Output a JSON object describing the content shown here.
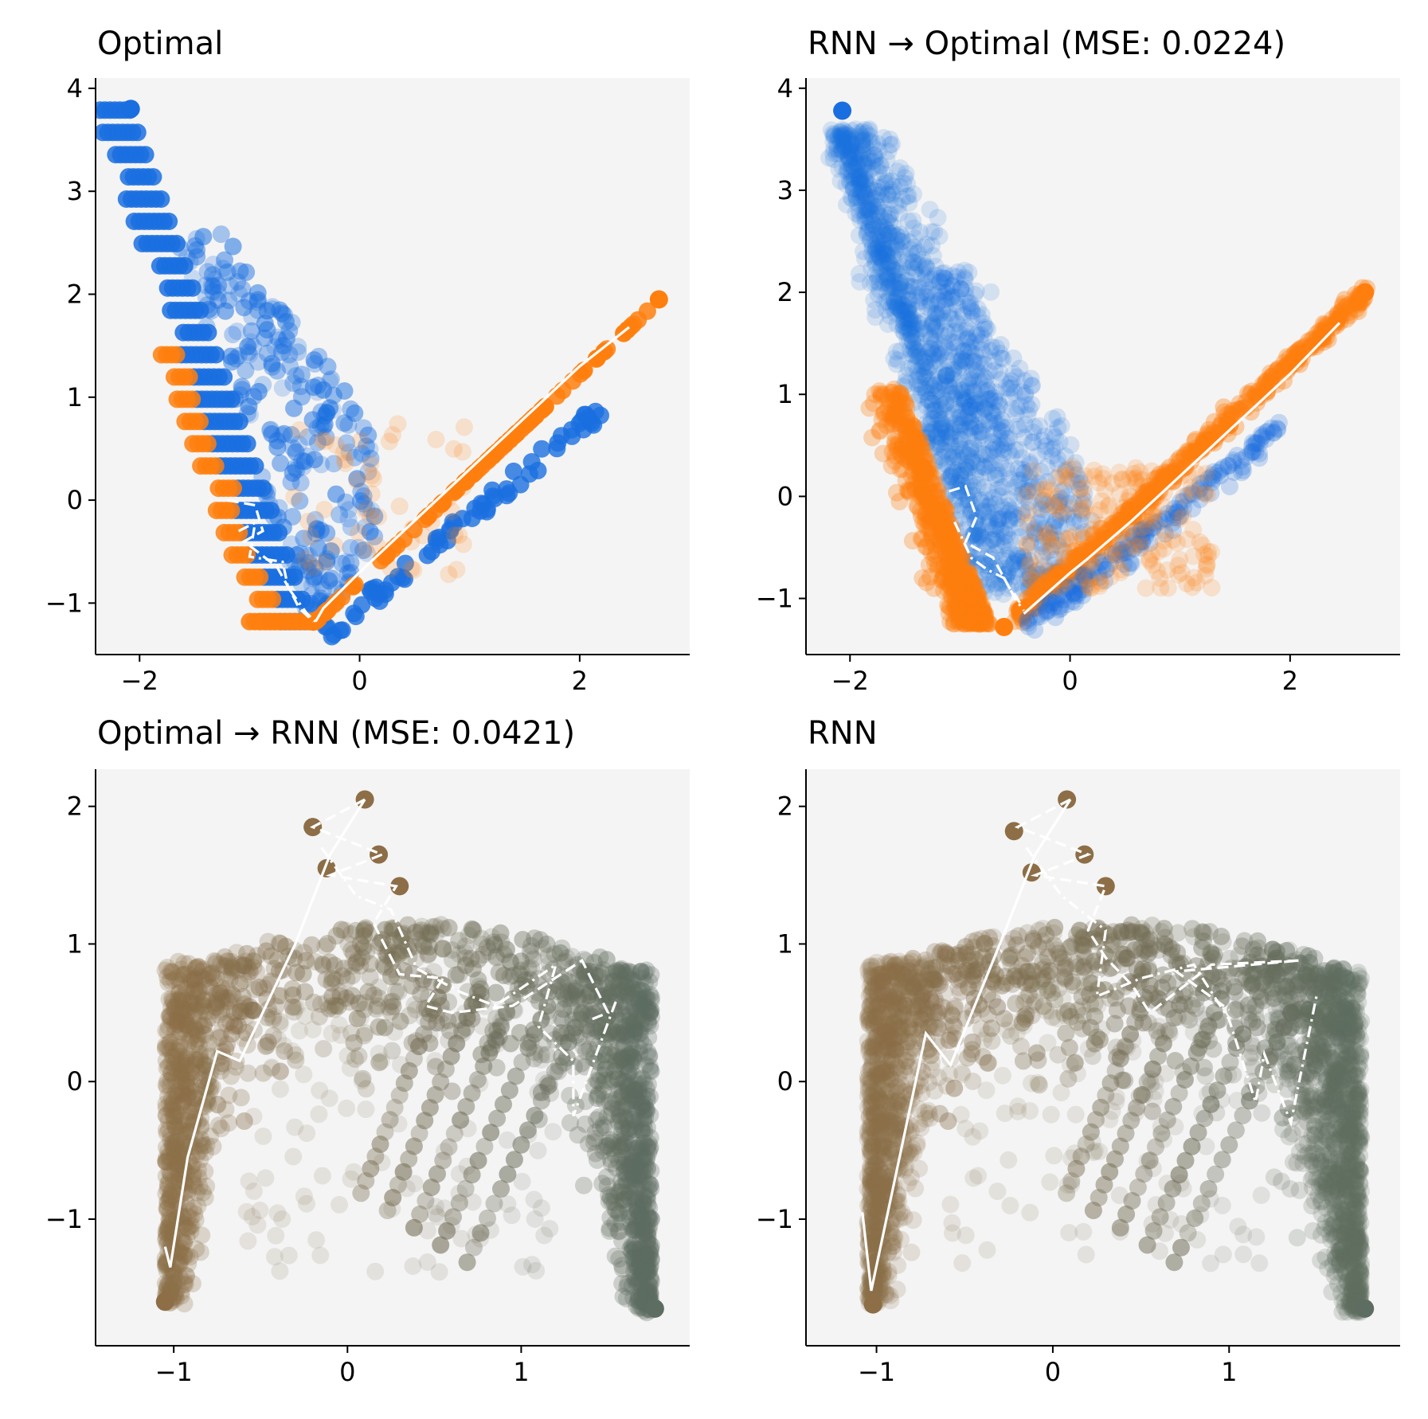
{
  "figure": {
    "background": "#ffffff",
    "panel_background": "#f4f4f4"
  },
  "chart_data": [
    {
      "type": "scatter",
      "title": "Optimal",
      "xlabel": "",
      "ylabel": "",
      "xlim": [
        -2.4,
        3.0
      ],
      "ylim": [
        -1.5,
        4.1
      ],
      "xticks": [
        -2,
        0,
        2
      ],
      "xtick_labels": [
        "−2",
        "0",
        "2"
      ],
      "yticks": [
        -1,
        0,
        1,
        2,
        3,
        4
      ],
      "ytick_labels": [
        "−1",
        "0",
        "1",
        "2",
        "3",
        "4"
      ],
      "grid": false,
      "series": [
        {
          "name": "blue",
          "color": "#1a6fe0"
        },
        {
          "name": "orange",
          "color": "#ff7f0e"
        }
      ],
      "generated_style": "optimal",
      "key_points": [
        {
          "x": -2.08,
          "y": 3.8,
          "color": "#1a6fe0"
        },
        {
          "x": 2.72,
          "y": 1.95,
          "color": "#ff7f0e"
        },
        {
          "x": -0.42,
          "y": -1.18,
          "color": "#ff7f0e"
        }
      ],
      "trajectories": [
        {
          "style": "solid",
          "points": [
            [
              -0.4,
              -1.18
            ],
            [
              -0.33,
              -1.05
            ],
            [
              0.0,
              -0.7
            ],
            [
              0.5,
              -0.2
            ],
            [
              1.0,
              0.3
            ],
            [
              1.5,
              0.8
            ],
            [
              2.0,
              1.3
            ],
            [
              2.45,
              1.68
            ]
          ]
        },
        {
          "style": "dashed",
          "points": [
            [
              -1.2,
              0.0
            ],
            [
              -0.95,
              -0.05
            ],
            [
              -0.88,
              -0.3
            ],
            [
              -1.05,
              -0.4
            ],
            [
              -0.75,
              -0.65
            ],
            [
              -0.62,
              -0.9
            ],
            [
              -0.55,
              -1.05
            ],
            [
              -0.42,
              -1.18
            ]
          ]
        },
        {
          "style": "dashdot",
          "points": [
            [
              -1.1,
              -0.3
            ],
            [
              -0.95,
              -0.22
            ],
            [
              -1.0,
              -0.55
            ],
            [
              -0.7,
              -0.6
            ],
            [
              -0.65,
              -0.85
            ],
            [
              -0.48,
              -1.1
            ],
            [
              -0.4,
              -1.18
            ]
          ]
        }
      ]
    },
    {
      "type": "scatter",
      "title": "RNN → Optimal (MSE: 0.0224)",
      "xlabel": "",
      "ylabel": "",
      "xlim": [
        -2.4,
        3.0
      ],
      "ylim": [
        -1.55,
        4.1
      ],
      "xticks": [
        -2,
        0,
        2
      ],
      "xtick_labels": [
        "−2",
        "0",
        "2"
      ],
      "yticks": [
        -1,
        0,
        1,
        2,
        3,
        4
      ],
      "ytick_labels": [
        "−1",
        "0",
        "1",
        "2",
        "3",
        "4"
      ],
      "grid": false,
      "series": [
        {
          "name": "blue",
          "color": "#1a6fe0"
        },
        {
          "name": "orange",
          "color": "#ff7f0e"
        }
      ],
      "generated_style": "rnn_optimal",
      "key_points": [
        {
          "x": -2.07,
          "y": 3.78,
          "color": "#1a6fe0"
        },
        {
          "x": 2.68,
          "y": 2.0,
          "color": "#ff7f0e"
        },
        {
          "x": -0.6,
          "y": -1.28,
          "color": "#ff7f0e"
        }
      ],
      "trajectories": [
        {
          "style": "solid",
          "points": [
            [
              -0.42,
              -1.15
            ],
            [
              0.0,
              -0.75
            ],
            [
              0.15,
              -0.62
            ],
            [
              0.55,
              -0.25
            ],
            [
              1.0,
              0.2
            ],
            [
              1.5,
              0.7
            ],
            [
              2.0,
              1.2
            ],
            [
              2.45,
              1.7
            ]
          ]
        },
        {
          "style": "dashed",
          "points": [
            [
              -1.1,
              0.05
            ],
            [
              -0.95,
              0.1
            ],
            [
              -0.85,
              -0.2
            ],
            [
              -0.95,
              -0.45
            ],
            [
              -0.7,
              -0.6
            ],
            [
              -0.55,
              -0.9
            ],
            [
              -0.45,
              -1.05
            ]
          ]
        },
        {
          "style": "dashdot",
          "points": [
            [
              -1.05,
              -0.25
            ],
            [
              -0.9,
              -0.6
            ],
            [
              -0.75,
              -0.72
            ],
            [
              -0.6,
              -0.8
            ],
            [
              -0.5,
              -1.0
            ],
            [
              -0.42,
              -1.12
            ]
          ]
        }
      ]
    },
    {
      "type": "scatter",
      "title": "Optimal → RNN (MSE: 0.0421)",
      "xlabel": "",
      "ylabel": "",
      "xlim": [
        -1.45,
        1.97
      ],
      "ylim": [
        -1.92,
        2.27
      ],
      "xticks": [
        -1,
        0,
        1
      ],
      "xtick_labels": [
        "−1",
        "0",
        "1"
      ],
      "yticks": [
        -1,
        0,
        1,
        2
      ],
      "ytick_labels": [
        "−1",
        "0",
        "1",
        "2"
      ],
      "grid": false,
      "series": [
        {
          "name": "low",
          "color": "#8d6e47"
        },
        {
          "name": "high",
          "color": "#5d6d61"
        }
      ],
      "generated_style": "optimal_rnn",
      "key_points": [
        {
          "x": 0.1,
          "y": 2.05,
          "color": "#8d6e47"
        },
        {
          "x": -0.2,
          "y": 1.85,
          "color": "#8d6e47"
        },
        {
          "x": 0.18,
          "y": 1.65,
          "color": "#8d6e47"
        },
        {
          "x": -0.12,
          "y": 1.55,
          "color": "#8d6e47"
        },
        {
          "x": 0.3,
          "y": 1.42,
          "color": "#8d6e47"
        },
        {
          "x": -1.05,
          "y": -1.6,
          "color": "#8d6e47"
        },
        {
          "x": 1.77,
          "y": -1.65,
          "color": "#5d6d61"
        }
      ],
      "trajectories": [
        {
          "style": "solid",
          "points": [
            [
              -1.05,
              -1.2
            ],
            [
              -1.02,
              -1.35
            ],
            [
              -0.92,
              -0.55
            ],
            [
              -0.75,
              0.22
            ],
            [
              -0.62,
              0.15
            ],
            [
              -0.3,
              1.0
            ],
            [
              -0.1,
              1.65
            ],
            [
              0.1,
              2.05
            ]
          ]
        },
        {
          "style": "dashed",
          "points": [
            [
              0.1,
              2.05
            ],
            [
              -0.2,
              1.85
            ],
            [
              0.2,
              1.65
            ],
            [
              -0.1,
              1.5
            ],
            [
              0.28,
              1.42
            ],
            [
              0.15,
              1.15
            ],
            [
              0.3,
              0.78
            ],
            [
              0.55,
              0.75
            ],
            [
              0.45,
              0.55
            ],
            [
              0.6,
              0.5
            ],
            [
              0.95,
              0.55
            ],
            [
              1.35,
              0.88
            ],
            [
              1.5,
              0.5
            ],
            [
              1.4,
              0.45
            ]
          ]
        },
        {
          "style": "dashdot",
          "points": [
            [
              -0.15,
              1.7
            ],
            [
              0.05,
              1.35
            ],
            [
              0.25,
              1.25
            ],
            [
              0.4,
              0.82
            ],
            [
              0.65,
              0.65
            ],
            [
              0.85,
              0.55
            ],
            [
              1.2,
              0.85
            ],
            [
              1.1,
              0.4
            ],
            [
              1.3,
              0.15
            ],
            [
              1.3,
              -0.25
            ],
            [
              1.55,
              0.6
            ]
          ]
        }
      ]
    },
    {
      "type": "scatter",
      "title": "RNN",
      "xlabel": "",
      "ylabel": "",
      "xlim": [
        -1.4,
        1.97
      ],
      "ylim": [
        -1.92,
        2.27
      ],
      "xticks": [
        -1,
        0,
        1
      ],
      "xtick_labels": [
        "−1",
        "0",
        "1"
      ],
      "yticks": [
        -1,
        0,
        1,
        2
      ],
      "ytick_labels": [
        "−1",
        "0",
        "1",
        "2"
      ],
      "grid": false,
      "series": [
        {
          "name": "low",
          "color": "#8d6e47"
        },
        {
          "name": "high",
          "color": "#5d6d61"
        }
      ],
      "generated_style": "rnn",
      "key_points": [
        {
          "x": 0.08,
          "y": 2.05,
          "color": "#8d6e47"
        },
        {
          "x": -0.22,
          "y": 1.82,
          "color": "#8d6e47"
        },
        {
          "x": 0.18,
          "y": 1.65,
          "color": "#8d6e47"
        },
        {
          "x": -0.12,
          "y": 1.52,
          "color": "#8d6e47"
        },
        {
          "x": 0.3,
          "y": 1.42,
          "color": "#8d6e47"
        },
        {
          "x": -1.02,
          "y": -1.62,
          "color": "#8d6e47"
        },
        {
          "x": 1.77,
          "y": -1.65,
          "color": "#5d6d61"
        }
      ],
      "trajectories": [
        {
          "style": "solid",
          "points": [
            [
              -1.08,
              -0.95
            ],
            [
              -1.03,
              -1.52
            ],
            [
              -0.72,
              0.35
            ],
            [
              -0.58,
              0.12
            ],
            [
              -0.3,
              1.0
            ],
            [
              -0.1,
              1.65
            ],
            [
              0.1,
              2.05
            ]
          ]
        },
        {
          "style": "dashed",
          "points": [
            [
              0.1,
              2.05
            ],
            [
              -0.2,
              1.85
            ],
            [
              0.2,
              1.65
            ],
            [
              -0.1,
              1.5
            ],
            [
              0.3,
              1.42
            ],
            [
              0.2,
              1.1
            ],
            [
              0.3,
              0.9
            ],
            [
              0.45,
              0.7
            ],
            [
              0.55,
              0.5
            ],
            [
              0.9,
              0.85
            ],
            [
              1.4,
              0.88
            ],
            [
              0.7,
              0.8
            ],
            [
              1.0,
              0.52
            ]
          ]
        },
        {
          "style": "dashdot",
          "points": [
            [
              -0.15,
              1.7
            ],
            [
              0.05,
              1.35
            ],
            [
              0.3,
              1.1
            ],
            [
              0.25,
              0.62
            ],
            [
              0.5,
              0.75
            ],
            [
              0.8,
              0.85
            ],
            [
              1.0,
              0.45
            ],
            [
              1.15,
              -0.15
            ],
            [
              1.2,
              0.2
            ],
            [
              1.35,
              -0.3
            ],
            [
              1.5,
              0.65
            ]
          ]
        }
      ]
    }
  ]
}
